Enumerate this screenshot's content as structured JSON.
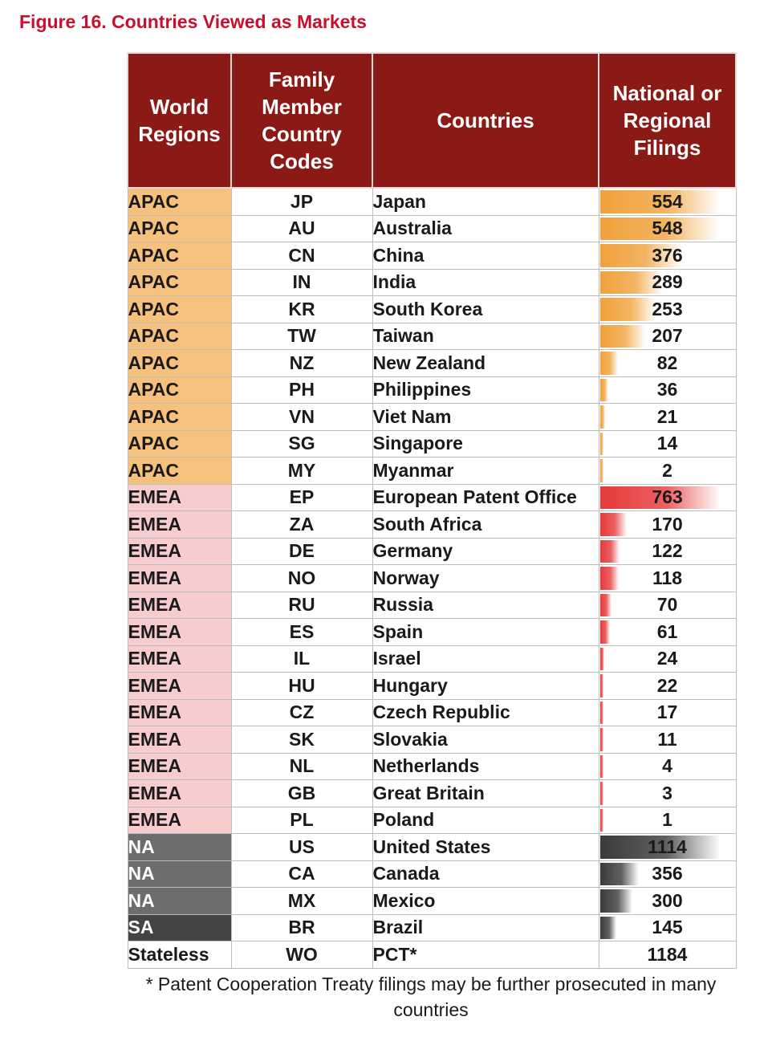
{
  "title": "Figure 16. Countries Viewed as Markets",
  "headers": {
    "region": "World Regions",
    "code": "Family Member Country Codes",
    "country": "Countries",
    "filings": "National or Regional Filings"
  },
  "colors": {
    "title": "#c8102e",
    "header_bg": "#8b1a17",
    "apac": "#f6c07d",
    "emea": "#f6cccd",
    "na": "#6d6d6d",
    "sa": "#444444",
    "apac_bar": "#f0a13a",
    "emea_bar": "#e63a3a",
    "na_bar": "#3a3a3a"
  },
  "rows": [
    {
      "region": "APAC",
      "code": "JP",
      "country": "Japan",
      "filings": "554"
    },
    {
      "region": "APAC",
      "code": "AU",
      "country": "Australia",
      "filings": "548"
    },
    {
      "region": "APAC",
      "code": "CN",
      "country": "China",
      "filings": "376"
    },
    {
      "region": "APAC",
      "code": "IN",
      "country": "India",
      "filings": "289"
    },
    {
      "region": "APAC",
      "code": "KR",
      "country": "South Korea",
      "filings": "253"
    },
    {
      "region": "APAC",
      "code": "TW",
      "country": "Taiwan",
      "filings": "207"
    },
    {
      "region": "APAC",
      "code": "NZ",
      "country": "New Zealand",
      "filings": "82"
    },
    {
      "region": "APAC",
      "code": "PH",
      "country": "Philippines",
      "filings": "36"
    },
    {
      "region": "APAC",
      "code": "VN",
      "country": "Viet Nam",
      "filings": "21"
    },
    {
      "region": "APAC",
      "code": "SG",
      "country": "Singapore",
      "filings": "14"
    },
    {
      "region": "APAC",
      "code": "MY",
      "country": "Myanmar",
      "filings": "2"
    },
    {
      "region": "EMEA",
      "code": "EP",
      "country": "European Patent Office",
      "filings": "763"
    },
    {
      "region": "EMEA",
      "code": "ZA",
      "country": "South Africa",
      "filings": "170"
    },
    {
      "region": "EMEA",
      "code": "DE",
      "country": "Germany",
      "filings": "122"
    },
    {
      "region": "EMEA",
      "code": "NO",
      "country": "Norway",
      "filings": "118"
    },
    {
      "region": "EMEA",
      "code": "RU",
      "country": "Russia",
      "filings": "70"
    },
    {
      "region": "EMEA",
      "code": "ES",
      "country": "Spain",
      "filings": "61"
    },
    {
      "region": "EMEA",
      "code": "IL",
      "country": "Israel",
      "filings": "24"
    },
    {
      "region": "EMEA",
      "code": "HU",
      "country": "Hungary",
      "filings": "22"
    },
    {
      "region": "EMEA",
      "code": "CZ",
      "country": "Czech Republic",
      "filings": "17"
    },
    {
      "region": "EMEA",
      "code": "SK",
      "country": "Slovakia",
      "filings": "11"
    },
    {
      "region": "EMEA",
      "code": "NL",
      "country": "Netherlands",
      "filings": "4"
    },
    {
      "region": "EMEA",
      "code": "GB",
      "country": "Great Britain",
      "filings": "3"
    },
    {
      "region": "EMEA",
      "code": "PL",
      "country": "Poland",
      "filings": "1"
    },
    {
      "region": "NA",
      "code": "US",
      "country": "United States",
      "filings": "1114"
    },
    {
      "region": "NA",
      "code": "CA",
      "country": "Canada",
      "filings": "356"
    },
    {
      "region": "NA",
      "code": "MX",
      "country": "Mexico",
      "filings": "300"
    },
    {
      "region": "SA",
      "code": "BR",
      "country": "Brazil",
      "filings": "145"
    },
    {
      "region": "Stateless",
      "code": "WO",
      "country": "PCT*",
      "filings": "1184"
    }
  ],
  "footnote": "* Patent Cooperation Treaty filings may be further prosecuted in many countries"
}
